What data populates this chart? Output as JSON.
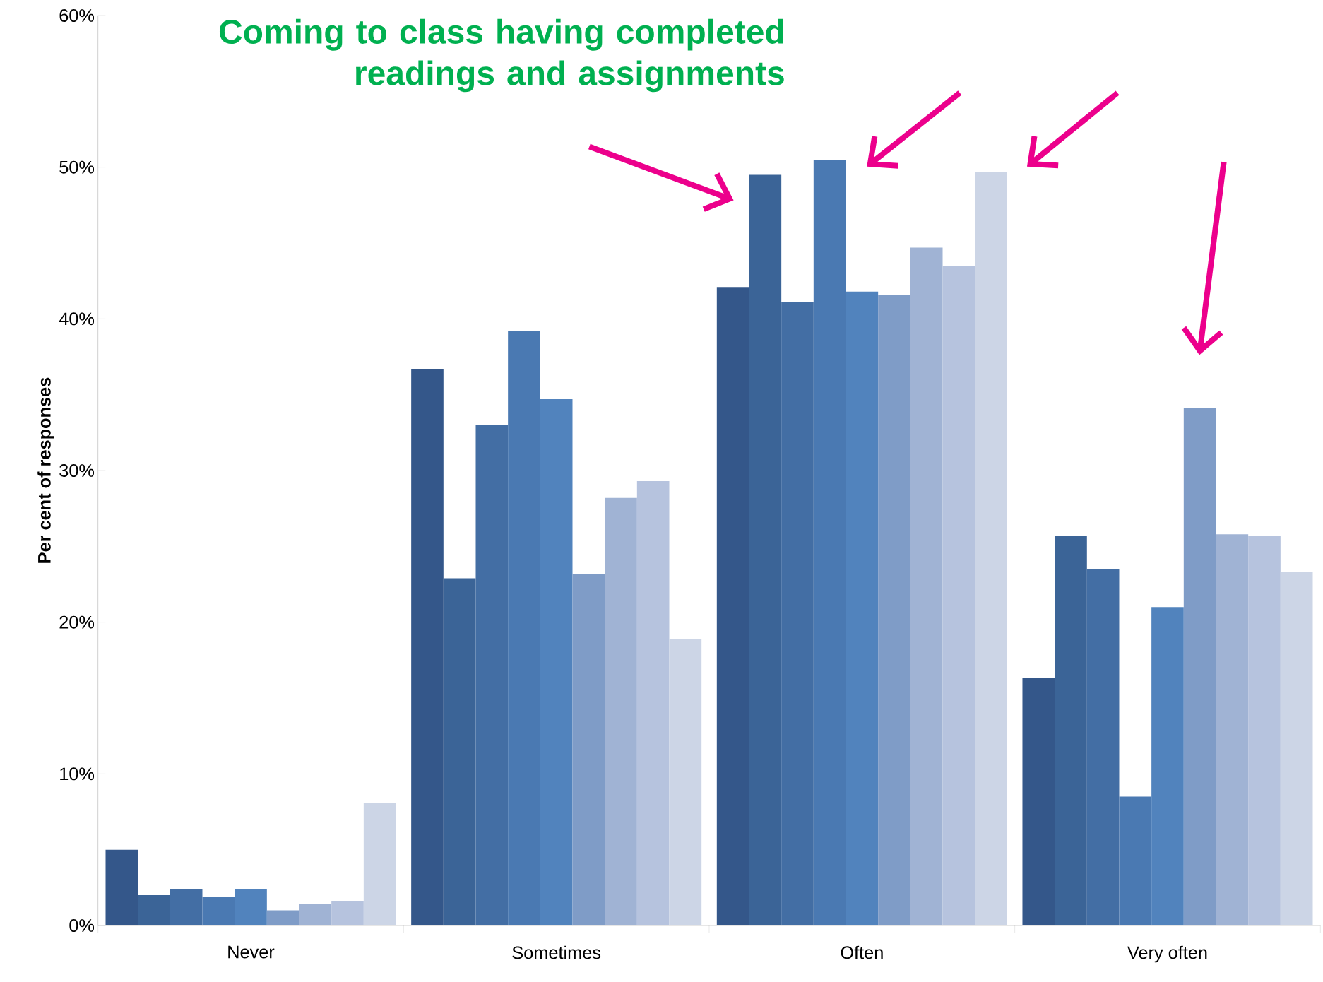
{
  "chart_data": {
    "type": "bar",
    "title": "Coming to class having completed readings and assignments",
    "ylabel": "Per cent of responses",
    "categories": [
      "Never",
      "Sometimes",
      "Often",
      "Very often"
    ],
    "ylim": [
      0,
      60
    ],
    "yticks": [
      {
        "value": 0,
        "label": "0%"
      },
      {
        "value": 10,
        "label": "10%"
      },
      {
        "value": 20,
        "label": "20%"
      },
      {
        "value": 30,
        "label": "30%"
      },
      {
        "value": 40,
        "label": "40%"
      },
      {
        "value": 50,
        "label": "50%"
      },
      {
        "value": 60,
        "label": "60%"
      }
    ],
    "series": [
      {
        "color": "#34578a",
        "values": [
          5.0,
          36.7,
          42.1,
          16.3
        ]
      },
      {
        "color": "#3b6497",
        "values": [
          2.0,
          22.9,
          49.5,
          25.7
        ]
      },
      {
        "color": "#436ea4",
        "values": [
          2.4,
          33.0,
          41.1,
          23.5
        ]
      },
      {
        "color": "#4a79b2",
        "values": [
          1.9,
          39.2,
          50.5,
          8.5
        ]
      },
      {
        "color": "#5183bd",
        "values": [
          2.4,
          34.7,
          41.8,
          21.0
        ]
      },
      {
        "color": "#7f9cc7",
        "values": [
          1.0,
          23.2,
          41.6,
          34.1
        ]
      },
      {
        "color": "#a0b3d4",
        "values": [
          1.4,
          28.2,
          44.7,
          25.8
        ]
      },
      {
        "color": "#b6c3de",
        "values": [
          1.6,
          29.3,
          43.5,
          25.7
        ]
      },
      {
        "color": "#ccd5e6",
        "values": [
          8.1,
          18.9,
          49.7,
          23.3
        ]
      }
    ]
  }
}
